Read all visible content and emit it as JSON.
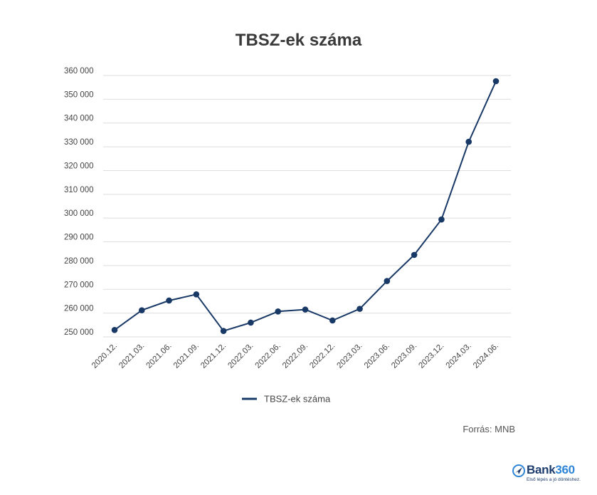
{
  "colors": {
    "series": "#183866",
    "grid": "#dedede"
  },
  "source": "Forrás: MNB",
  "logo": {
    "brand_main": "Bank",
    "brand_accent": "360",
    "tagline": "Első lépés a jó döntéshez.",
    "icon": "compass-plane-icon"
  },
  "chart_data": {
    "type": "line",
    "title": "TBSZ-ek száma",
    "xlabel": "",
    "ylabel": "",
    "ylim": [
      250000,
      360000
    ],
    "yticks": [
      250000,
      260000,
      270000,
      280000,
      290000,
      300000,
      310000,
      320000,
      330000,
      340000,
      350000,
      360000
    ],
    "ytick_labels": [
      "250 000",
      "260 000",
      "270 000",
      "280 000",
      "290 000",
      "300 000",
      "310 000",
      "320 000",
      "330 000",
      "340 000",
      "350 000",
      "360 000"
    ],
    "categories": [
      "2020.12.",
      "2021.03.",
      "2021.06.",
      "2021.09.",
      "2021.12.",
      "2022.03.",
      "2022.06.",
      "2022.09.",
      "2022.12.",
      "2023.03.",
      "2023.06.",
      "2023.09.",
      "2023.12.",
      "2024.03.",
      "2024.06."
    ],
    "series": [
      {
        "name": "TBSZ-ek száma",
        "values": [
          252900,
          261200,
          265300,
          267900,
          252500,
          256000,
          260700,
          261500,
          256900,
          261800,
          273500,
          284500,
          299400,
          332100,
          357600
        ]
      }
    ],
    "grid": true,
    "legend": "bottom-center"
  }
}
